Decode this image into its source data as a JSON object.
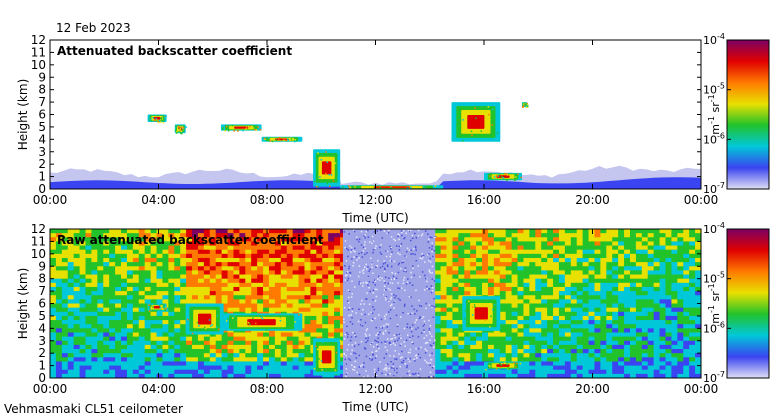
{
  "date": "12 Feb 2023",
  "footer": "Vehmasmaki CL51 ceilometer",
  "chart_data": [
    {
      "type": "heatmap",
      "title": "Attenuated backscatter coefficient",
      "xlabel": "Time (UTC)",
      "ylabel": "Height (km)",
      "xlim": [
        "00:00",
        "24:00"
      ],
      "ylim": [
        0,
        12
      ],
      "x_ticks": [
        "00:00",
        "04:00",
        "08:00",
        "12:00",
        "16:00",
        "20:00",
        "00:00"
      ],
      "y_ticks": [
        "0",
        "1",
        "2",
        "3",
        "4",
        "5",
        "6",
        "7",
        "8",
        "9",
        "10",
        "11",
        "12"
      ],
      "colorbar": {
        "scale": "log",
        "range": [
          1e-07,
          0.0001
        ],
        "ticks": [
          {
            "base": "10",
            "exp": "-4"
          },
          {
            "base": "10",
            "exp": "-5"
          },
          {
            "base": "10",
            "exp": "-6"
          },
          {
            "base": "10",
            "exp": "-7"
          }
        ],
        "label": {
          "m": "m",
          "m_exp": "-1",
          "sr": " sr",
          "sr_exp": "-1"
        },
        "colormap": [
          "#e0e0f4",
          "#3a44f0",
          "#00c8d8",
          "#22c22a",
          "#e8e000",
          "#ff7a00",
          "#e00000",
          "#7a0064"
        ]
      },
      "features": [
        {
          "kind": "boundary layer",
          "time_h": [
            0,
            24
          ],
          "height_km": [
            0,
            2.0
          ]
        },
        {
          "kind": "cloud",
          "time_h": [
            3.6,
            4.3
          ],
          "height_km": [
            5.4,
            6.0
          ]
        },
        {
          "kind": "cloud",
          "time_h": [
            4.6,
            5.0
          ],
          "height_km": [
            4.5,
            5.2
          ]
        },
        {
          "kind": "cloud",
          "time_h": [
            6.3,
            7.8
          ],
          "height_km": [
            4.7,
            5.2
          ]
        },
        {
          "kind": "cloud",
          "time_h": [
            7.8,
            9.3
          ],
          "height_km": [
            3.8,
            4.2
          ]
        },
        {
          "kind": "cloud",
          "time_h": [
            9.7,
            10.7
          ],
          "height_km": [
            0.2,
            3.2
          ]
        },
        {
          "kind": "cloud",
          "time_h": [
            10.7,
            14.5
          ],
          "height_km": [
            0,
            0.3
          ]
        },
        {
          "kind": "cloud",
          "time_h": [
            14.8,
            16.6
          ],
          "height_km": [
            3.8,
            7.0
          ]
        },
        {
          "kind": "cloud",
          "time_h": [
            16.0,
            17.4
          ],
          "height_km": [
            0.7,
            1.3
          ]
        },
        {
          "kind": "cloud",
          "time_h": [
            17.4,
            17.6
          ],
          "height_km": [
            6.6,
            7.0
          ]
        }
      ]
    },
    {
      "type": "heatmap",
      "title": "Raw attenuated backscatter coefficient",
      "xlabel": "Time (UTC)",
      "ylabel": "Height (km)",
      "xlim": [
        "00:00",
        "24:00"
      ],
      "ylim": [
        0,
        12
      ],
      "x_ticks": [
        "00:00",
        "04:00",
        "08:00",
        "12:00",
        "16:00",
        "20:00",
        "00:00"
      ],
      "y_ticks": [
        "0",
        "1",
        "2",
        "3",
        "4",
        "5",
        "6",
        "7",
        "8",
        "9",
        "10",
        "11",
        "12"
      ],
      "colorbar": {
        "scale": "log",
        "range": [
          1e-07,
          0.0001
        ],
        "ticks": [
          {
            "base": "10",
            "exp": "-4"
          },
          {
            "base": "10",
            "exp": "-5"
          },
          {
            "base": "10",
            "exp": "-6"
          },
          {
            "base": "10",
            "exp": "-7"
          }
        ],
        "label": {
          "m": "m",
          "m_exp": "-1",
          "sr": " sr",
          "sr_exp": "-1"
        },
        "colormap": [
          "#e0e0f4",
          "#3a44f0",
          "#00c8d8",
          "#22c22a",
          "#e8e000",
          "#ff7a00",
          "#e00000",
          "#7a0064"
        ]
      },
      "features": [
        {
          "kind": "noisy background",
          "time_h": [
            0,
            24
          ],
          "height_km": [
            0,
            12
          ]
        },
        {
          "kind": "sun noise",
          "time_h": [
            10.8,
            14.2
          ],
          "height_km": [
            0,
            12
          ]
        },
        {
          "kind": "cloud",
          "time_h": [
            3.6,
            4.3
          ],
          "height_km": [
            5.4,
            6.0
          ]
        },
        {
          "kind": "cloud",
          "time_h": [
            5.0,
            6.4
          ],
          "height_km": [
            3.5,
            6.0
          ]
        },
        {
          "kind": "cloud",
          "time_h": [
            6.3,
            9.3
          ],
          "height_km": [
            3.8,
            5.2
          ]
        },
        {
          "kind": "cloud",
          "time_h": [
            9.7,
            10.7
          ],
          "height_km": [
            0.2,
            3.2
          ]
        },
        {
          "kind": "cloud",
          "time_h": [
            15.2,
            16.6
          ],
          "height_km": [
            3.8,
            6.6
          ]
        },
        {
          "kind": "cloud",
          "time_h": [
            16.0,
            17.4
          ],
          "height_km": [
            0.7,
            1.3
          ]
        }
      ]
    }
  ]
}
